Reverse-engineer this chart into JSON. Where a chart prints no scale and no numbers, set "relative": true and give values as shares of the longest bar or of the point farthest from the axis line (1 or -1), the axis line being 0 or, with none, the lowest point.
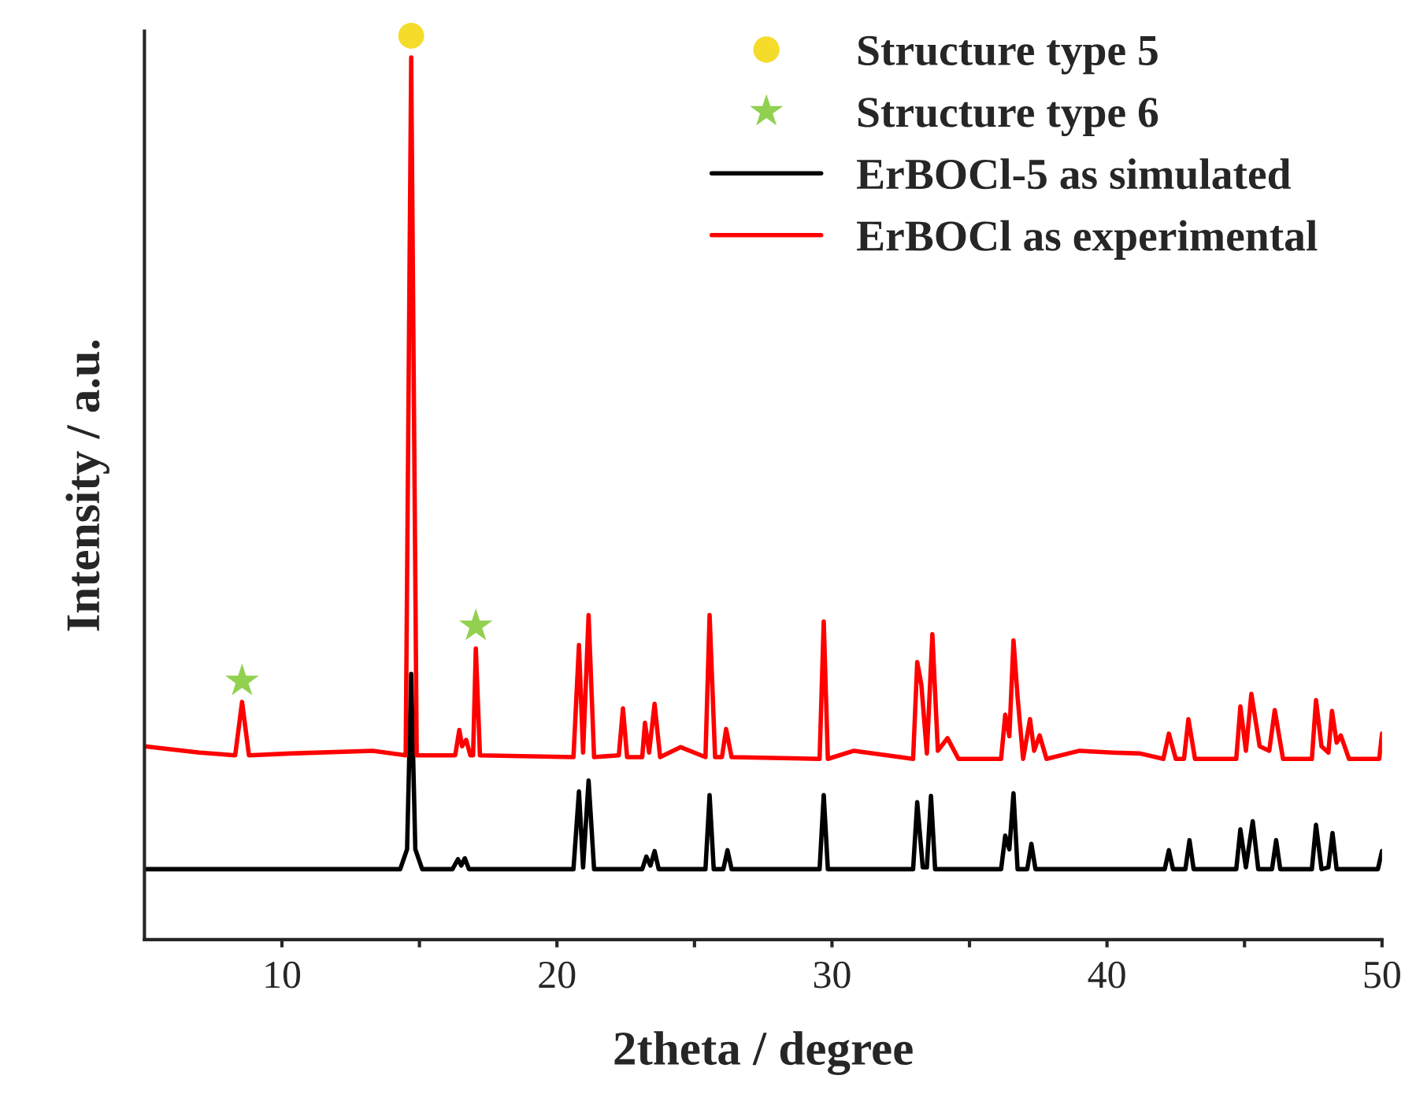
{
  "chart_data": {
    "type": "line",
    "relative": true,
    "xlabel": "2theta / degree",
    "ylabel": "Intensity / a.u.",
    "xlim": [
      5,
      50
    ],
    "xticks": [
      10,
      {
        "value": 15,
        "label": null
      },
      20,
      {
        "value": 25,
        "label": null
      },
      30,
      {
        "value": 35,
        "label": null
      },
      40,
      {
        "value": 45,
        "label": null
      },
      50
    ],
    "legend": "top right",
    "grid": false,
    "series": [
      {
        "name": "Structure type 5",
        "type": "scatter",
        "marker": "circle",
        "color": "#f5dc2a",
        "x": [
          14.7
        ],
        "values": [
          1.0
        ]
      },
      {
        "name": "Structure type 6",
        "type": "scatter",
        "marker": "star",
        "color": "#92d050",
        "x": [
          8.55,
          17.05
        ],
        "values": [
          0.286,
          0.347
        ]
      },
      {
        "name": "ErBOCl-5 as simulated",
        "color": "#000000",
        "x": [
          5.0,
          14.3,
          14.55,
          14.7,
          14.85,
          15.1,
          16.2,
          16.4,
          16.52,
          16.65,
          16.8,
          20.6,
          20.8,
          20.95,
          21.15,
          21.35,
          23.1,
          23.25,
          23.4,
          23.55,
          23.7,
          25.4,
          25.55,
          25.7,
          26.05,
          26.2,
          26.35,
          29.55,
          29.7,
          29.85,
          32.95,
          33.1,
          33.3,
          33.45,
          33.6,
          33.75,
          36.15,
          36.3,
          36.45,
          36.6,
          36.75,
          37.1,
          37.25,
          37.4,
          42.1,
          42.25,
          42.4,
          42.85,
          43.0,
          43.15,
          44.7,
          44.85,
          45.05,
          45.3,
          45.5,
          46.0,
          46.15,
          46.3,
          47.45,
          47.6,
          47.8,
          48.05,
          48.2,
          48.35,
          49.85,
          50.0
        ],
        "values": [
          0.078,
          0.078,
          0.1,
          0.294,
          0.1,
          0.078,
          0.078,
          0.089,
          0.082,
          0.09,
          0.078,
          0.078,
          0.164,
          0.08,
          0.176,
          0.078,
          0.078,
          0.092,
          0.082,
          0.098,
          0.078,
          0.078,
          0.16,
          0.078,
          0.078,
          0.099,
          0.078,
          0.078,
          0.16,
          0.078,
          0.078,
          0.152,
          0.08,
          0.08,
          0.159,
          0.078,
          0.078,
          0.115,
          0.1,
          0.162,
          0.078,
          0.078,
          0.106,
          0.078,
          0.078,
          0.099,
          0.078,
          0.078,
          0.11,
          0.078,
          0.078,
          0.122,
          0.08,
          0.131,
          0.078,
          0.078,
          0.11,
          0.078,
          0.078,
          0.127,
          0.078,
          0.08,
          0.118,
          0.078,
          0.078,
          0.098
        ]
      },
      {
        "name": "ErBOCl as experimental",
        "color": "#ff0000",
        "x": [
          5.0,
          7.0,
          8.3,
          8.55,
          8.8,
          10.3,
          13.3,
          14.5,
          14.7,
          14.9,
          16.3,
          16.45,
          16.55,
          16.7,
          16.85,
          16.95,
          17.05,
          17.2,
          20.6,
          20.8,
          20.95,
          21.15,
          21.35,
          22.25,
          22.4,
          22.55,
          23.1,
          23.2,
          23.35,
          23.55,
          23.75,
          24.5,
          25.4,
          25.55,
          25.75,
          26.0,
          26.15,
          26.35,
          29.55,
          29.7,
          29.85,
          30.8,
          32.95,
          33.1,
          33.25,
          33.45,
          33.65,
          33.85,
          34.2,
          34.6,
          36.15,
          36.3,
          36.45,
          36.6,
          36.75,
          36.95,
          37.2,
          37.35,
          37.55,
          37.8,
          39.0,
          40.2,
          41.2,
          42.05,
          42.25,
          42.5,
          42.8,
          42.96,
          43.2,
          44.7,
          44.85,
          45.05,
          45.25,
          45.55,
          45.9,
          46.1,
          46.4,
          47.45,
          47.6,
          47.8,
          48.05,
          48.18,
          48.35,
          48.5,
          48.8,
          49.9,
          50.0
        ],
        "values": [
          0.214,
          0.207,
          0.204,
          0.263,
          0.204,
          0.206,
          0.209,
          0.204,
          0.976,
          0.204,
          0.204,
          0.232,
          0.214,
          0.221,
          0.204,
          0.204,
          0.322,
          0.204,
          0.202,
          0.326,
          0.207,
          0.359,
          0.202,
          0.204,
          0.256,
          0.202,
          0.202,
          0.24,
          0.207,
          0.261,
          0.202,
          0.213,
          0.202,
          0.359,
          0.202,
          0.202,
          0.233,
          0.202,
          0.2,
          0.352,
          0.2,
          0.209,
          0.2,
          0.307,
          0.282,
          0.206,
          0.338,
          0.209,
          0.223,
          0.2,
          0.2,
          0.249,
          0.225,
          0.331,
          0.268,
          0.2,
          0.244,
          0.209,
          0.226,
          0.2,
          0.209,
          0.207,
          0.206,
          0.2,
          0.228,
          0.2,
          0.2,
          0.244,
          0.2,
          0.2,
          0.258,
          0.209,
          0.272,
          0.214,
          0.209,
          0.254,
          0.2,
          0.2,
          0.265,
          0.214,
          0.207,
          0.253,
          0.218,
          0.226,
          0.2,
          0.2,
          0.228
        ]
      }
    ]
  }
}
